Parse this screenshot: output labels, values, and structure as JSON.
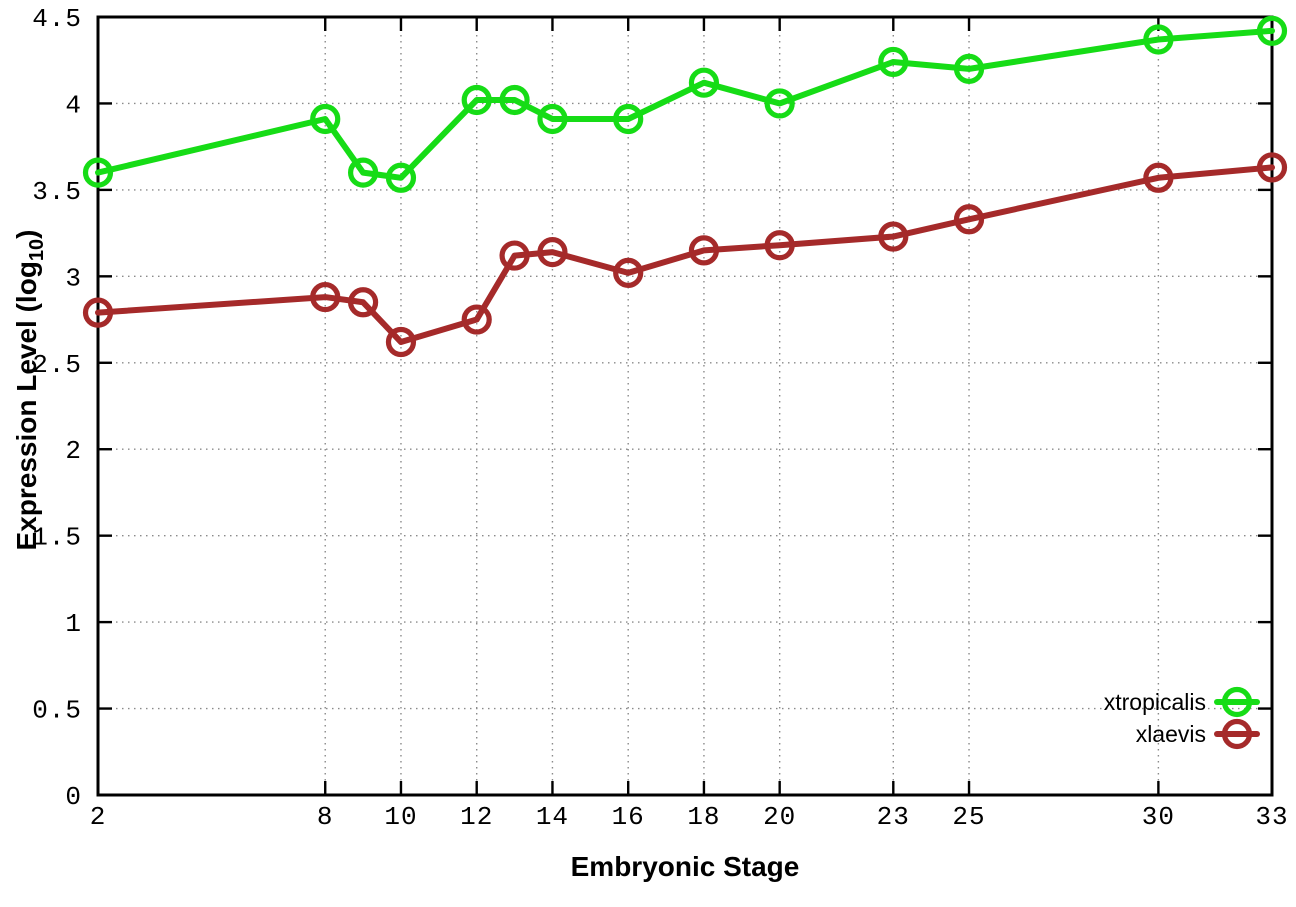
{
  "chart_data": {
    "type": "line",
    "title": "",
    "xlabel": "Embryonic Stage",
    "ylabel": "Expression Level (log10)",
    "ylabel_parts": {
      "main": "Expression Level (log",
      "sub": "10",
      "suffix": ")"
    },
    "xlim": [
      2,
      33
    ],
    "ylim": [
      0,
      4.5
    ],
    "grid": true,
    "legend_position": "bottom-right",
    "x": [
      2,
      8,
      9,
      10,
      12,
      13,
      14,
      16,
      18,
      20,
      23,
      25,
      30,
      33
    ],
    "xticks": [
      2,
      8,
      10,
      12,
      14,
      16,
      18,
      20,
      23,
      25,
      30,
      33
    ],
    "xtick_labels": [
      "2",
      "8",
      "10",
      "12",
      "14",
      "16",
      "18",
      "20",
      "23",
      "25",
      "30",
      "33"
    ],
    "yticks": [
      0,
      0.5,
      1,
      1.5,
      2,
      2.5,
      3,
      3.5,
      4,
      4.5
    ],
    "ytick_labels": [
      "0",
      "0.5",
      "1",
      "1.5",
      "2",
      "2.5",
      "3",
      "3.5",
      "4",
      "4.5"
    ],
    "series": [
      {
        "name": "xtropicalis",
        "color": "#16dc16",
        "values": [
          3.6,
          3.91,
          3.6,
          3.57,
          4.02,
          4.02,
          3.91,
          3.91,
          4.12,
          4.0,
          4.24,
          4.2,
          4.37,
          4.42
        ]
      },
      {
        "name": "xlaevis",
        "color": "#a52a2a",
        "values": [
          2.79,
          2.88,
          2.85,
          2.62,
          2.75,
          3.12,
          3.14,
          3.02,
          3.15,
          3.18,
          3.23,
          3.33,
          3.57,
          3.63
        ]
      }
    ]
  },
  "colors": {
    "background": "#ffffff",
    "axis": "#000000",
    "grid": "#8a8a8a",
    "text": "#000000"
  }
}
